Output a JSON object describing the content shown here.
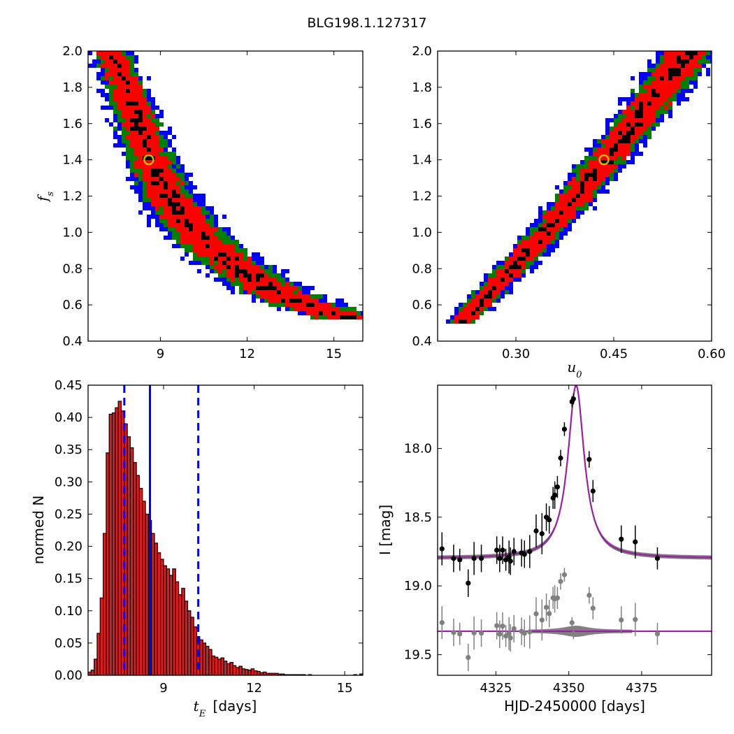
{
  "figure": {
    "title": "BLG198.1.127317"
  },
  "colors": {
    "sigma3": "#0000ff",
    "sigma2": "#008000",
    "sigma1": "#ff0000",
    "densest": "#000000",
    "best_marker": "#bfbf00",
    "hist_bar": "#e31a1c",
    "vline": "#0000ff",
    "model": "#9b1fa5",
    "model_band": "#808080",
    "data": "#000000",
    "residual": "#808080"
  },
  "chart_data": [
    {
      "type": "heatmap",
      "id": "fs_vs_tE",
      "xlabel": "",
      "ylabel": "f_s",
      "xlim": [
        6.5,
        16.0
      ],
      "ylim": [
        0.4,
        2.0
      ],
      "xticks": [
        "9",
        "12",
        "15"
      ],
      "yticks": [
        "0.4",
        "0.6",
        "0.8",
        "1.0",
        "1.2",
        "1.4",
        "1.6",
        "1.8",
        "2.0"
      ],
      "levels": [
        "3-sigma (blue)",
        "2-sigma (green)",
        "1-sigma (red)",
        "densest (black)"
      ],
      "ridge": {
        "x": [
          7.3,
          7.8,
          8.3,
          8.6,
          9.0,
          9.5,
          10.0,
          10.7,
          11.5,
          12.3,
          13.0,
          14.0,
          15.0
        ],
        "y": [
          2.0,
          1.8,
          1.58,
          1.42,
          1.28,
          1.15,
          1.04,
          0.93,
          0.83,
          0.74,
          0.67,
          0.6,
          0.55
        ]
      },
      "best_fit": {
        "x": 8.6,
        "y": 1.4
      }
    },
    {
      "type": "heatmap",
      "id": "fs_vs_u0",
      "xlabel": "u_0",
      "ylabel": "",
      "xlim": [
        0.18,
        0.6
      ],
      "ylim": [
        0.4,
        2.0
      ],
      "xticks": [
        "0.30",
        "0.45",
        "0.60"
      ],
      "yticks": [
        "0.4",
        "0.6",
        "0.8",
        "1.0",
        "1.2",
        "1.4",
        "1.6",
        "1.8",
        "2.0"
      ],
      "levels": [
        "3-sigma (blue)",
        "2-sigma (green)",
        "1-sigma (red)",
        "densest (black)"
      ],
      "ridge": {
        "x": [
          0.225,
          0.26,
          0.3,
          0.34,
          0.38,
          0.42,
          0.46,
          0.5,
          0.54,
          0.565
        ],
        "y": [
          0.54,
          0.67,
          0.82,
          0.98,
          1.14,
          1.32,
          1.5,
          1.68,
          1.87,
          2.0
        ]
      },
      "best_fit": {
        "x": 0.435,
        "y": 1.4
      }
    },
    {
      "type": "bar",
      "id": "tE_histogram",
      "xlabel": "t_E [days]",
      "ylabel": "normed N",
      "xlim": [
        6.5,
        15.6
      ],
      "ylim": [
        0.0,
        0.45
      ],
      "xticks": [
        "9",
        "12",
        "15"
      ],
      "yticks": [
        "0.00",
        "0.05",
        "0.10",
        "0.15",
        "0.20",
        "0.25",
        "0.30",
        "0.35",
        "0.40",
        "0.45"
      ],
      "bin_start": 6.5,
      "bin_width": 0.1,
      "values": [
        0.005,
        0.008,
        0.025,
        0.065,
        0.12,
        0.22,
        0.345,
        0.405,
        0.407,
        0.415,
        0.425,
        0.41,
        0.39,
        0.37,
        0.353,
        0.33,
        0.31,
        0.29,
        0.27,
        0.25,
        0.24,
        0.22,
        0.205,
        0.19,
        0.18,
        0.17,
        0.165,
        0.155,
        0.165,
        0.145,
        0.125,
        0.135,
        0.115,
        0.1,
        0.09,
        0.075,
        0.06,
        0.055,
        0.05,
        0.045,
        0.04,
        0.03,
        0.028,
        0.025,
        0.027,
        0.022,
        0.018,
        0.02,
        0.015,
        0.012,
        0.014,
        0.01,
        0.009,
        0.008,
        0.01,
        0.007,
        0.006,
        0.004,
        0.005,
        0.003,
        0.003,
        0.003,
        0.003,
        0.002,
        0.002,
        0.001,
        0.001,
        0.001,
        0.001,
        0.001,
        0.001,
        0.001,
        0.0,
        0.001,
        0.0,
        0.0,
        0.0,
        0.0,
        0.0,
        0.0,
        0.0,
        0.0,
        0.0,
        0.0,
        0.0,
        0.0,
        0.0,
        0.0,
        0.001,
        0.0,
        0.002
      ],
      "vlines": {
        "solid": 8.55,
        "dashed": [
          7.7,
          10.15
        ]
      }
    },
    {
      "type": "scatter",
      "id": "lightcurve",
      "xlabel": "HJD-2450000 [days]",
      "ylabel": "I [mag]",
      "xlim": [
        4305,
        4399
      ],
      "ylim": [
        19.65,
        17.54
      ],
      "xticks": [
        "4325",
        "4350",
        "4375"
      ],
      "yticks": [
        "18.0",
        "18.5",
        "19.0",
        "19.5"
      ],
      "model": {
        "t0": 4352.5,
        "baseline": 18.8,
        "amplitude": 1.26,
        "width": 3.4
      },
      "residual_offset": 19.33,
      "points": [
        [
          4306.5,
          18.73,
          0.12
        ],
        [
          4310.5,
          18.8,
          0.1
        ],
        [
          4312.6,
          18.81,
          0.08
        ],
        [
          4315.5,
          18.98,
          0.1
        ],
        [
          4317.5,
          18.8,
          0.12
        ],
        [
          4320.0,
          18.8,
          0.1
        ],
        [
          4325.3,
          18.74,
          0.1
        ],
        [
          4326.3,
          18.8,
          0.1
        ],
        [
          4327.3,
          18.74,
          0.1
        ],
        [
          4328.4,
          18.81,
          0.08
        ],
        [
          4329.5,
          18.79,
          0.12
        ],
        [
          4330.0,
          18.82,
          0.1
        ],
        [
          4331.2,
          18.75,
          0.1
        ],
        [
          4333.8,
          18.76,
          0.1
        ],
        [
          4334.8,
          18.77,
          0.1
        ],
        [
          4336.6,
          18.75,
          0.12
        ],
        [
          4338.8,
          18.6,
          0.12
        ],
        [
          4340.8,
          18.62,
          0.15
        ],
        [
          4342.3,
          18.5,
          0.1
        ],
        [
          4343.3,
          18.52,
          0.1
        ],
        [
          4344.6,
          18.36,
          0.08
        ],
        [
          4345.2,
          18.34,
          0.1
        ],
        [
          4346.1,
          18.28,
          0.08
        ],
        [
          4347.2,
          18.07,
          0.06
        ],
        [
          4348.5,
          17.86,
          0.05
        ],
        [
          4351.1,
          17.66,
          0.04
        ],
        [
          4351.6,
          17.64,
          0.04
        ],
        [
          4357.0,
          18.08,
          0.06
        ],
        [
          4358.3,
          18.31,
          0.08
        ],
        [
          4368.0,
          18.66,
          0.1
        ],
        [
          4372.8,
          18.68,
          0.12
        ],
        [
          4380.4,
          18.8,
          0.08
        ]
      ]
    }
  ]
}
